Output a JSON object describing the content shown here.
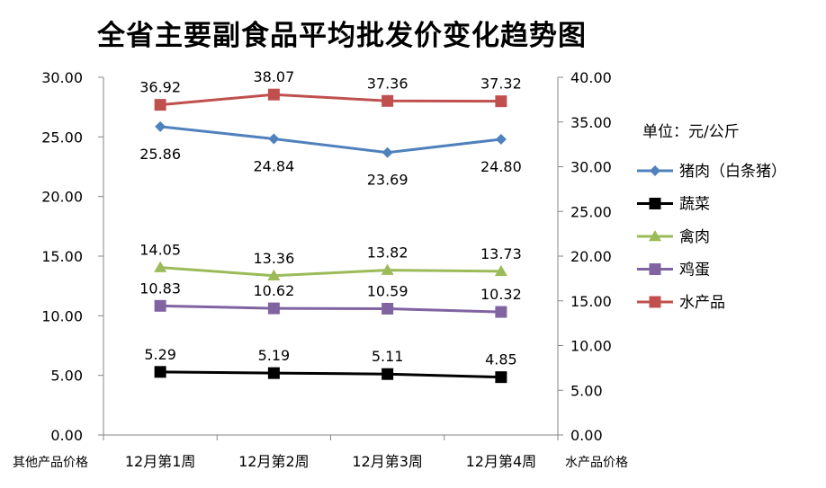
{
  "chart_data": {
    "type": "line",
    "title": "全省主要副食品平均批发价变化趋势图",
    "unit_note": "单位：元/公斤",
    "xlabel_left": "其他产品价格",
    "xlabel_right": "水产品价格",
    "categories": [
      "12月第1周",
      "12月第2周",
      "12月第3周",
      "12月第4周"
    ],
    "y_left": {
      "min": 0,
      "max": 30,
      "step": 5,
      "ticks": [
        "0.00",
        "5.00",
        "10.00",
        "15.00",
        "20.00",
        "25.00",
        "30.00"
      ]
    },
    "y_right": {
      "min": 0,
      "max": 40,
      "step": 5,
      "ticks": [
        "0.00",
        "5.00",
        "10.00",
        "15.00",
        "20.00",
        "25.00",
        "30.00",
        "35.00",
        "40.00"
      ]
    },
    "grid": false,
    "legend_position": "right",
    "series": [
      {
        "name": "猪肉（白条猪）",
        "axis": "left",
        "color": "#4f81bd",
        "marker": "diamond",
        "values": [
          25.86,
          24.84,
          23.69,
          24.8
        ],
        "labels": [
          "25.86",
          "24.84",
          "23.69",
          "24.80"
        ],
        "label_pos": "below"
      },
      {
        "name": "蔬菜",
        "axis": "left",
        "color": "#000000",
        "marker": "square",
        "values": [
          5.29,
          5.19,
          5.11,
          4.85
        ],
        "labels": [
          "5.29",
          "5.19",
          "5.11",
          "4.85"
        ],
        "label_pos": "above"
      },
      {
        "name": "禽肉",
        "axis": "left",
        "color": "#9bbb59",
        "marker": "triangle",
        "values": [
          14.05,
          13.36,
          13.82,
          13.73
        ],
        "labels": [
          "14.05",
          "13.36",
          "13.82",
          "13.73"
        ],
        "label_pos": "above"
      },
      {
        "name": "鸡蛋",
        "axis": "left",
        "color": "#8064a2",
        "marker": "square",
        "values": [
          10.83,
          10.62,
          10.59,
          10.32
        ],
        "labels": [
          "10.83",
          "10.62",
          "10.59",
          "10.32"
        ],
        "label_pos": "above"
      },
      {
        "name": "水产品",
        "axis": "right",
        "color": "#c0504d",
        "marker": "square",
        "values": [
          36.92,
          38.07,
          37.36,
          37.32
        ],
        "labels": [
          "36.92",
          "38.07",
          "37.36",
          "37.32"
        ],
        "label_pos": "above"
      }
    ]
  }
}
